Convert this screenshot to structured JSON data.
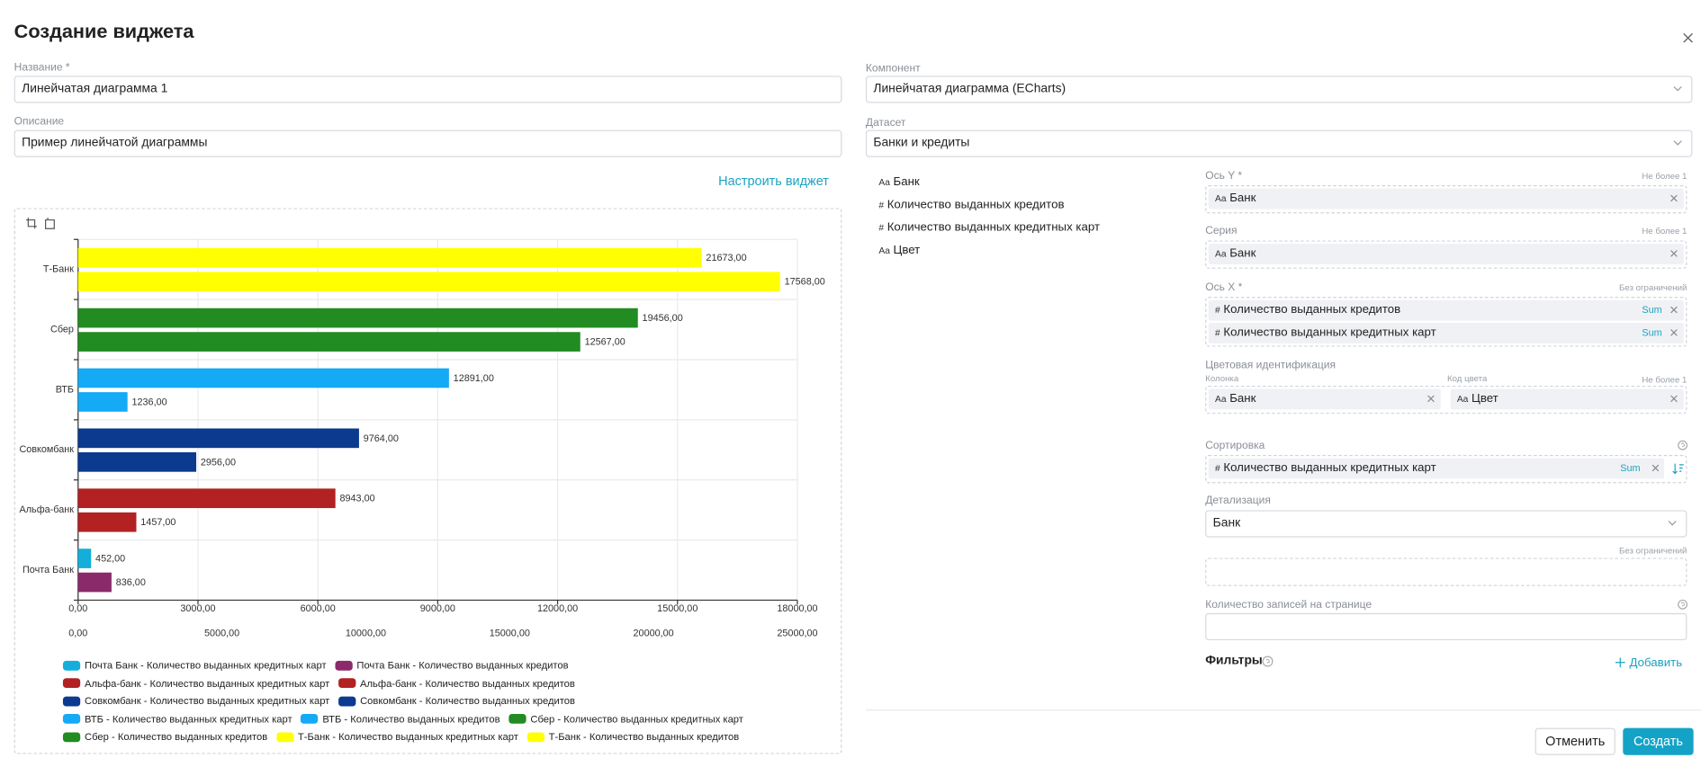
{
  "dialog": {
    "title": "Создание виджета",
    "name": {
      "label": "Название *",
      "value": "Линейчатая диаграмма 1"
    },
    "description": {
      "label": "Описание",
      "value": "Пример линейчатой диаграммы"
    },
    "configure": "Настроить виджет",
    "component": {
      "label": "Компонент",
      "value": "Линейчатая диаграмма (ECharts)"
    },
    "dataset": {
      "label": "Датасет",
      "value": "Банки и кредиты"
    },
    "fields": [
      {
        "icon": "Aa",
        "name": "Банк"
      },
      {
        "icon": "#",
        "name": "Количество выданных кредитов"
      },
      {
        "icon": "#",
        "name": "Количество выданных кредитных карт"
      },
      {
        "icon": "Aa",
        "name": "Цвет"
      }
    ],
    "y_axis": {
      "label": "Ось Y *",
      "hint": "Не более 1",
      "items": [
        {
          "icon": "Aa",
          "name": "Банк"
        }
      ]
    },
    "series": {
      "label": "Серия",
      "hint": "Не более 1",
      "items": [
        {
          "icon": "Aa",
          "name": "Банк"
        }
      ]
    },
    "x_axis": {
      "label": "Ось X *",
      "hint": "Без ограничений",
      "items": [
        {
          "icon": "#",
          "name": "Количество выданных кредитов",
          "agg": "Sum"
        },
        {
          "icon": "#",
          "name": "Количество выданных кредитных карт",
          "agg": "Sum"
        }
      ]
    },
    "color_id": {
      "label": "Цветовая идентификация",
      "column_label": "Колонка",
      "code_label": "Код цвета",
      "hint": "Не более 1",
      "column": {
        "icon": "Aa",
        "name": "Банк"
      },
      "code": {
        "icon": "Aa",
        "name": "Цвет"
      }
    },
    "sorting": {
      "label": "Сортировка",
      "items": [
        {
          "icon": "#",
          "name": "Количество выданных кредитных карт",
          "agg": "Sum"
        }
      ]
    },
    "detail": {
      "label": "Детализация",
      "value": "Банк",
      "hint": "Без ограничений"
    },
    "page_size": {
      "label": "Количество записей на странице"
    },
    "filters": {
      "label": "Фильтры",
      "add": "Добавить"
    },
    "buttons": {
      "cancel": "Отменить",
      "create": "Создать"
    }
  },
  "chart_data": {
    "type": "bar",
    "orientation": "horizontal",
    "grid": true,
    "categories": [
      "Почта Банк",
      "Альфа-банк",
      "Совкомбанк",
      "ВТБ",
      "Сбер",
      "Т-Банк"
    ],
    "xlim": [
      0,
      18000
    ],
    "xticks": [
      {
        "value": 0,
        "label": "0,00"
      },
      {
        "value": 3000,
        "label": "3000,00"
      },
      {
        "value": 6000,
        "label": "6000,00"
      },
      {
        "value": 9000,
        "label": "9000,00"
      },
      {
        "value": 12000,
        "label": "12000,00"
      },
      {
        "value": 15000,
        "label": "15000,00"
      },
      {
        "value": 18000,
        "label": "18000,00"
      }
    ],
    "x2lim": [
      0,
      25000
    ],
    "x2ticks": [
      {
        "value": 0,
        "label": "0,00"
      },
      {
        "value": 5000,
        "label": "5000,00"
      },
      {
        "value": 10000,
        "label": "10000,00"
      },
      {
        "value": 15000,
        "label": "15000,00"
      },
      {
        "value": 20000,
        "label": "20000,00"
      },
      {
        "value": 25000,
        "label": "25000,00"
      }
    ],
    "series": [
      {
        "name": "Почта Банк - Количество выданных кредитных карт",
        "color": "#15aedb",
        "axis": "x2",
        "values": [
          452,
          null,
          null,
          null,
          null,
          null
        ],
        "value_labels": [
          "452,00",
          null,
          null,
          null,
          null,
          null
        ]
      },
      {
        "name": "Почта Банк - Количество выданных кредитов",
        "color": "#8b2a6b",
        "axis": "x",
        "values": [
          836,
          null,
          null,
          null,
          null,
          null
        ],
        "value_labels": [
          "836,00",
          null,
          null,
          null,
          null,
          null
        ]
      },
      {
        "name": "Альфа-банк - Количество выданных кредитных карт",
        "color": "#b22222",
        "axis": "x2",
        "values": [
          null,
          8943,
          null,
          null,
          null,
          null
        ],
        "value_labels": [
          null,
          "8943,00",
          null,
          null,
          null,
          null
        ]
      },
      {
        "name": "Альфа-банк - Количество выданных кредитов",
        "color": "#b22222",
        "axis": "x",
        "values": [
          null,
          1457,
          null,
          null,
          null,
          null
        ],
        "value_labels": [
          null,
          "1457,00",
          null,
          null,
          null,
          null
        ]
      },
      {
        "name": "Совкомбанк - Количество выданных кредитных карт",
        "color": "#0b3a8f",
        "axis": "x2",
        "values": [
          null,
          null,
          9764,
          null,
          null,
          null
        ],
        "value_labels": [
          null,
          null,
          "9764,00",
          null,
          null,
          null
        ]
      },
      {
        "name": "Совкомбанк - Количество выданных кредитов",
        "color": "#0b3a8f",
        "axis": "x",
        "values": [
          null,
          null,
          2956,
          null,
          null,
          null
        ],
        "value_labels": [
          null,
          null,
          "2956,00",
          null,
          null,
          null
        ]
      },
      {
        "name": "ВТБ - Количество выданных кредитных карт",
        "color": "#14aaf5",
        "axis": "x2",
        "values": [
          null,
          null,
          null,
          12891,
          null,
          null
        ],
        "value_labels": [
          null,
          null,
          null,
          "12891,00",
          null,
          null
        ]
      },
      {
        "name": "ВТБ - Количество выданных кредитов",
        "color": "#14aaf5",
        "axis": "x",
        "values": [
          null,
          null,
          null,
          1236,
          null,
          null
        ],
        "value_labels": [
          null,
          null,
          null,
          "1236,00",
          null,
          null
        ]
      },
      {
        "name": "Сбер - Количество выданных кредитных карт",
        "color": "#228b22",
        "axis": "x2",
        "values": [
          null,
          null,
          null,
          null,
          19456,
          null
        ],
        "value_labels": [
          null,
          null,
          null,
          null,
          "19456,00",
          null
        ]
      },
      {
        "name": "Сбер - Количество выданных кредитов",
        "color": "#228b22",
        "axis": "x",
        "values": [
          null,
          null,
          null,
          null,
          12567,
          null
        ],
        "value_labels": [
          null,
          null,
          null,
          null,
          "12567,00",
          null
        ]
      },
      {
        "name": "Т-Банк - Количество выданных кредитных карт",
        "color": "#ffff00",
        "axis": "x2",
        "values": [
          null,
          null,
          null,
          null,
          null,
          21673
        ],
        "value_labels": [
          null,
          null,
          null,
          null,
          null,
          "21673,00"
        ]
      },
      {
        "name": "Т-Банк - Количество выданных кредитов",
        "color": "#ffff00",
        "axis": "x",
        "values": [
          null,
          null,
          null,
          null,
          null,
          17568
        ],
        "value_labels": [
          null,
          null,
          null,
          null,
          null,
          "17568,00"
        ]
      }
    ]
  }
}
